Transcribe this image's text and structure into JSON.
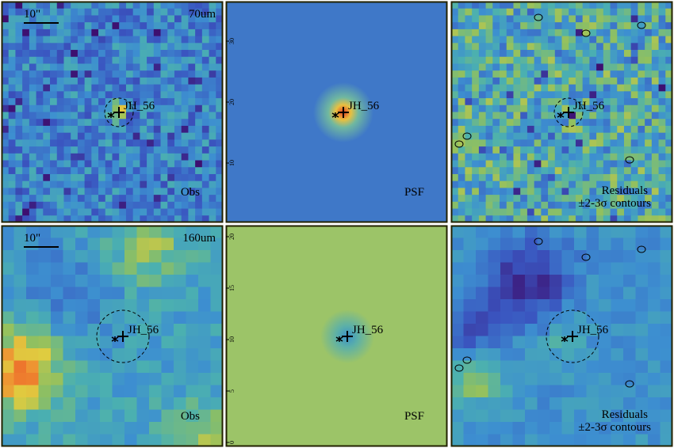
{
  "panels": [
    {
      "scale_bar": "10\"",
      "band": "70um",
      "source": "JH_56",
      "label": "Obs"
    },
    {
      "source": "JH_56",
      "label": "PSF",
      "ticks": [
        "30",
        "20",
        "10"
      ]
    },
    {
      "source": "JH_56",
      "label": "Residuals",
      "note": "±2-3σ contours"
    },
    {
      "scale_bar": "10\"",
      "band": "160um",
      "source": "JH_56",
      "label": "Obs"
    },
    {
      "source": "JH_56",
      "label": "PSF",
      "ticks": [
        "20",
        "15",
        "10",
        "5",
        "0"
      ]
    },
    {
      "source": "JH_56",
      "label": "Residuals",
      "note": "±2-3σ contours"
    }
  ]
}
